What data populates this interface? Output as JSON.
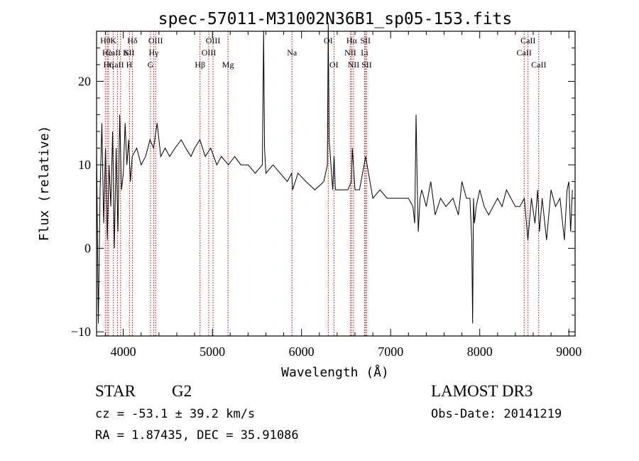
{
  "chart_data": {
    "type": "line",
    "title": "spec-57011-M31002N36B1_sp05-153.fits",
    "xlabel": "Wavelength (Å)",
    "ylabel": "Flux (relative)",
    "xlim": [
      3700,
      9070
    ],
    "ylim": [
      -10.5,
      26
    ],
    "xticks": [
      4000,
      5000,
      6000,
      7000,
      8000,
      9000
    ],
    "yticks": [
      -10,
      0,
      10,
      20
    ],
    "series": [
      {
        "name": "flux",
        "x": [
          3700,
          3720,
          3740,
          3760,
          3780,
          3800,
          3820,
          3840,
          3860,
          3880,
          3900,
          3920,
          3940,
          3960,
          3980,
          4000,
          4020,
          4040,
          4060,
          4080,
          4100,
          4150,
          4200,
          4250,
          4300,
          4340,
          4380,
          4420,
          4470,
          4520,
          4580,
          4650,
          4700,
          4760,
          4800,
          4860,
          4920,
          4980,
          5050,
          5100,
          5180,
          5250,
          5320,
          5400,
          5480,
          5560,
          5575,
          5585,
          5600,
          5680,
          5760,
          5840,
          5890,
          5900,
          5960,
          6050,
          6150,
          6250,
          6290,
          6300,
          6310,
          6350,
          6365,
          6380,
          6450,
          6520,
          6560,
          6570,
          6600,
          6650,
          6720,
          6800,
          6880,
          6960,
          7040,
          7120,
          7200,
          7250,
          7270,
          7285,
          7300,
          7310,
          7330,
          7350,
          7400,
          7450,
          7500,
          7560,
          7620,
          7700,
          7760,
          7800,
          7850,
          7890,
          7910,
          7920,
          7930,
          7940,
          7960,
          8000,
          8050,
          8100,
          8150,
          8200,
          8250,
          8300,
          8350,
          8400,
          8450,
          8500,
          8540,
          8580,
          8620,
          8650,
          8670,
          8700,
          8750,
          8800,
          8850,
          8900,
          8950,
          8980,
          9000,
          9020,
          9040
        ],
        "values": [
          12,
          -9,
          7,
          15,
          3,
          12,
          1,
          10,
          5,
          14,
          0,
          12,
          2,
          16,
          7,
          9,
          15,
          10,
          13,
          8,
          11,
          12,
          10,
          11,
          13,
          12,
          15,
          11,
          12,
          11,
          12,
          13,
          12,
          11,
          12,
          13,
          11,
          12,
          10,
          11,
          10,
          11,
          10,
          10,
          9,
          10,
          26,
          12,
          9,
          10,
          9,
          8,
          9,
          7,
          9,
          8,
          7,
          8,
          10,
          27,
          13,
          7,
          11,
          7,
          7,
          7,
          8,
          12,
          7,
          7,
          11,
          6,
          7,
          6,
          6,
          6,
          6,
          5,
          3,
          16,
          7,
          2,
          6,
          7,
          5,
          8,
          4,
          6,
          5,
          6,
          4,
          8,
          6,
          6,
          1,
          -9,
          6,
          3,
          5,
          7,
          5,
          4,
          5,
          6,
          5,
          7,
          6,
          5,
          5,
          6,
          1,
          6,
          3,
          7,
          2,
          6,
          1,
          7,
          5,
          6,
          1,
          7,
          8,
          2,
          7
        ]
      }
    ],
    "line_markers": [
      {
        "label": "CaII K",
        "x": 3934,
        "row": 1
      },
      {
        "label": "CaII H",
        "x": 3969,
        "row": 2
      },
      {
        "label": "Hθ",
        "x": 3798,
        "row": 0
      },
      {
        "label": "He",
        "x": 3820,
        "row": 1
      },
      {
        "label": "Hη",
        "x": 3835,
        "row": 2
      },
      {
        "label": "K",
        "x": 3889,
        "row": 0
      },
      {
        "label": "SII",
        "x": 4069,
        "row": 1
      },
      {
        "label": "Hδ",
        "x": 4102,
        "row": 0
      },
      {
        "label": "OIII",
        "x": 4363,
        "row": 0
      },
      {
        "label": "Hγ",
        "x": 4341,
        "row": 1
      },
      {
        "label": "G",
        "x": 4305,
        "row": 2
      },
      {
        "label": "Hβ",
        "x": 4861,
        "row": 2
      },
      {
        "label": "OIII",
        "x": 4959,
        "row": 1
      },
      {
        "label": "OIII",
        "x": 5007,
        "row": 0
      },
      {
        "label": "Mg",
        "x": 5175,
        "row": 2
      },
      {
        "label": "Na",
        "x": 5893,
        "row": 1
      },
      {
        "label": "OI",
        "x": 6300,
        "row": 0
      },
      {
        "label": "OI",
        "x": 6364,
        "row": 2
      },
      {
        "label": "Hα",
        "x": 6563,
        "row": 0
      },
      {
        "label": "NII",
        "x": 6548,
        "row": 1
      },
      {
        "label": "NII",
        "x": 6584,
        "row": 2
      },
      {
        "label": "SII",
        "x": 6717,
        "row": 0
      },
      {
        "label": "Li",
        "x": 6707,
        "row": 1
      },
      {
        "label": "SII",
        "x": 6731,
        "row": 2
      },
      {
        "label": "CaII",
        "x": 8498,
        "row": 1
      },
      {
        "label": "CaII",
        "x": 8542,
        "row": 0
      },
      {
        "label": "CaII",
        "x": 8662,
        "row": 2
      }
    ]
  },
  "info": {
    "object_class": "STAR",
    "subclass": "G2",
    "cz": "cz = -53.1 ± 39.2 km/s",
    "coords": "RA =   1.87435, DEC =  35.91086",
    "survey": "LAMOST DR3",
    "obs_date": "Obs-Date: 20141219"
  },
  "colors": {
    "line": "#000000",
    "marker": "#cc0000",
    "background": "#ffffff"
  }
}
